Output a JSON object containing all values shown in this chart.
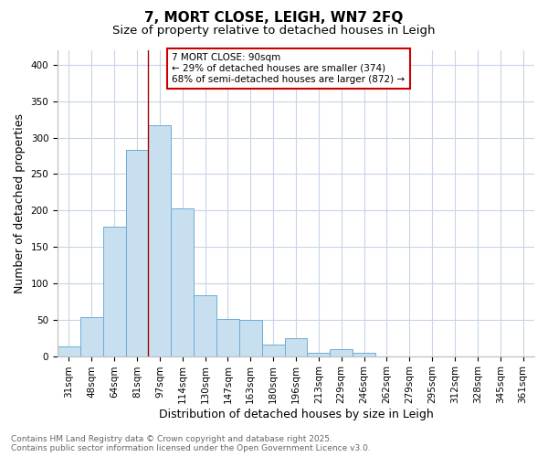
{
  "title": "7, MORT CLOSE, LEIGH, WN7 2FQ",
  "subtitle": "Size of property relative to detached houses in Leigh",
  "xlabel": "Distribution of detached houses by size in Leigh",
  "ylabel": "Number of detached properties",
  "bar_labels": [
    "31sqm",
    "48sqm",
    "64sqm",
    "81sqm",
    "97sqm",
    "114sqm",
    "130sqm",
    "147sqm",
    "163sqm",
    "180sqm",
    "196sqm",
    "213sqm",
    "229sqm",
    "246sqm",
    "262sqm",
    "279sqm",
    "295sqm",
    "312sqm",
    "328sqm",
    "345sqm",
    "361sqm"
  ],
  "bar_values": [
    13,
    53,
    178,
    283,
    317,
    203,
    83,
    51,
    50,
    16,
    24,
    5,
    9,
    4,
    0,
    0,
    0,
    0,
    0,
    0,
    0
  ],
  "bar_color": "#c8dff0",
  "bar_edge_color": "#6aaed6",
  "ylim": [
    0,
    420
  ],
  "yticks": [
    0,
    50,
    100,
    150,
    200,
    250,
    300,
    350,
    400
  ],
  "property_size_sqm": 90,
  "property_bar_index": 4,
  "vline_color": "#aa0000",
  "annotation_title": "7 MORT CLOSE: 90sqm",
  "annotation_line1": "← 29% of detached houses are smaller (374)",
  "annotation_line2": "68% of semi-detached houses are larger (872) →",
  "annotation_box_facecolor": "#ffffff",
  "annotation_box_edgecolor": "#cc0000",
  "footer_line1": "Contains HM Land Registry data © Crown copyright and database right 2025.",
  "footer_line2": "Contains public sector information licensed under the Open Government Licence v3.0.",
  "bg_color": "#ffffff",
  "grid_color": "#c8d4e8",
  "title_fontsize": 11,
  "subtitle_fontsize": 9.5,
  "axis_label_fontsize": 9,
  "tick_fontsize": 7.5,
  "footer_fontsize": 6.5
}
